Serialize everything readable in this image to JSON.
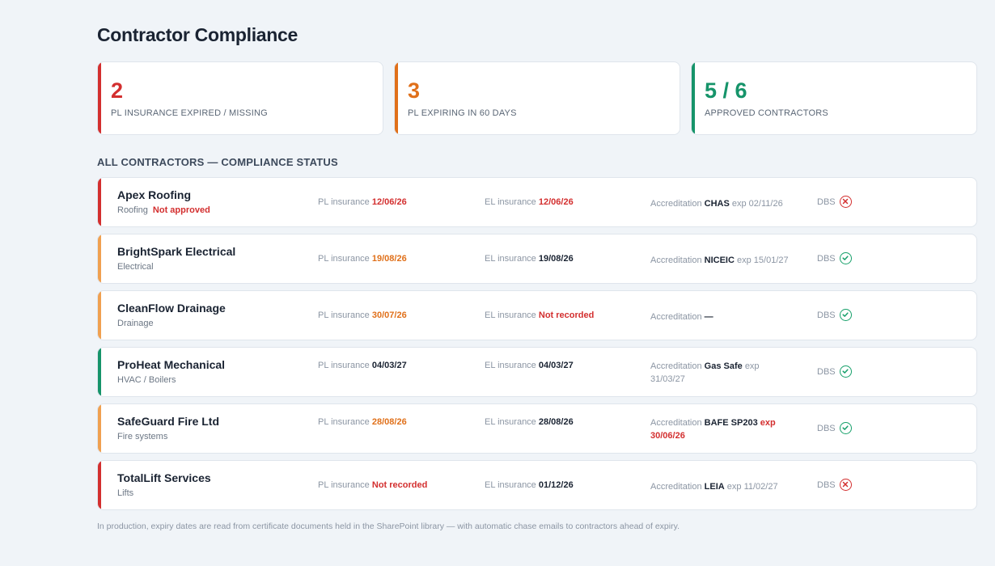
{
  "title": "Contractor Compliance",
  "kpis": [
    {
      "value": "2",
      "label": "PL INSURANCE EXPIRED / MISSING",
      "color": "#d32f2f"
    },
    {
      "value": "3",
      "label": "PL EXPIRING IN 60 DAYS",
      "color": "#e0701a"
    },
    {
      "value": "5 / 6",
      "label": "APPROVED CONTRACTORS",
      "color": "#16946a"
    }
  ],
  "section_title": "ALL CONTRACTORS — COMPLIANCE STATUS",
  "labels": {
    "pl": "PL insurance",
    "el": "EL insurance",
    "acc": "Accreditation",
    "dbs": "DBS"
  },
  "contractors": [
    {
      "name": "Apex Roofing",
      "trade": "Roofing",
      "warn": "Not approved",
      "pl": "12/06/26",
      "el": "12/06/26",
      "acc": "CHAS",
      "acc_exp": "exp 02/11/26",
      "dbs": "fail"
    },
    {
      "name": "BrightSpark Electrical",
      "trade": "Electrical",
      "warn": "",
      "pl": "19/08/26",
      "el": "19/08/26",
      "acc": "NICEIC",
      "acc_exp": "exp 15/01/27",
      "dbs": "pass"
    },
    {
      "name": "CleanFlow Drainage",
      "trade": "Drainage",
      "warn": "",
      "pl": "30/07/26",
      "el": "Not recorded",
      "acc": "—",
      "acc_exp": "",
      "dbs": "pass"
    },
    {
      "name": "ProHeat Mechanical",
      "trade": "HVAC / Boilers",
      "warn": "",
      "pl": "04/03/27",
      "el": "04/03/27",
      "acc": "Gas Safe",
      "acc_exp": "exp 31/03/27",
      "dbs": "pass"
    },
    {
      "name": "SafeGuard Fire Ltd",
      "trade": "Fire systems",
      "warn": "",
      "pl": "28/08/26",
      "el": "28/08/26",
      "acc": "BAFE SP203",
      "acc_exp": "exp 30/06/26",
      "dbs": "pass"
    },
    {
      "name": "TotalLift Services",
      "trade": "Lifts",
      "warn": "",
      "pl": "Not recorded",
      "el": "01/12/26",
      "acc": "LEIA",
      "acc_exp": "exp 11/02/27",
      "dbs": "fail"
    }
  ],
  "footnote": "In production, expiry dates are read from certificate documents held in the SharePoint library — with automatic chase emails to contractors ahead of expiry.",
  "colors": {
    "red": "#d32f2f",
    "orange": "#e0701a",
    "green": "#16946a",
    "bar_orange": "#f0a050"
  }
}
